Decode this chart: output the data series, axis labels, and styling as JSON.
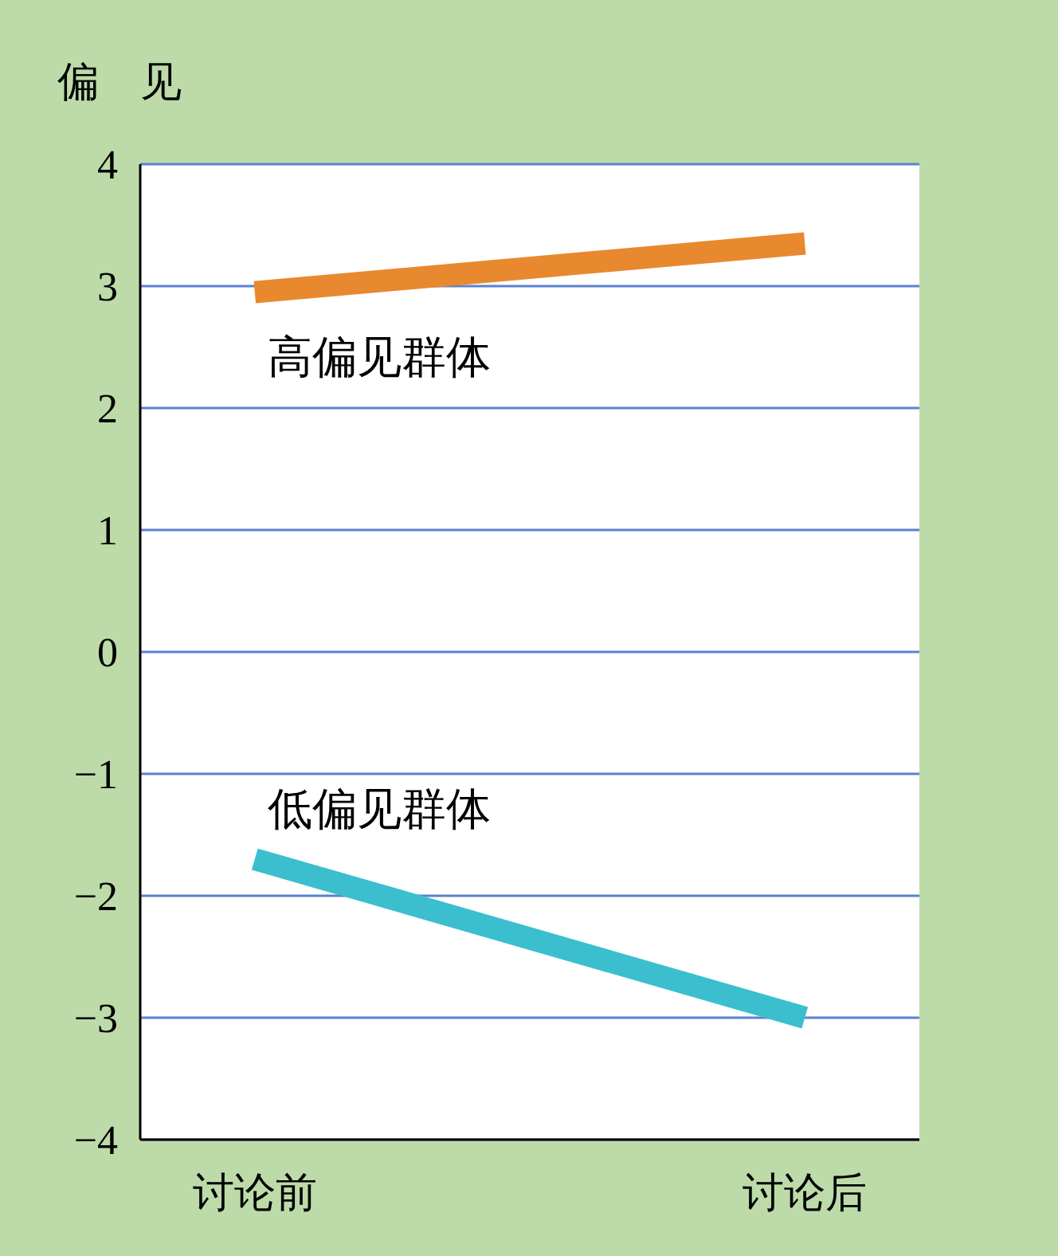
{
  "chart_data": {
    "type": "line",
    "ylabel": "偏　见",
    "categories": [
      "讨论前",
      "讨论后"
    ],
    "series": [
      {
        "name": "高偏见群体",
        "color": "#e8892f",
        "values": [
          2.95,
          3.35
        ]
      },
      {
        "name": "低偏见群体",
        "color": "#3bbfcf",
        "values": [
          -1.7,
          -3.0
        ]
      }
    ],
    "ylim": [
      -4,
      4
    ],
    "yticks": [
      {
        "value": -4,
        "label": "−4"
      },
      {
        "value": -3,
        "label": "−3"
      },
      {
        "value": -2,
        "label": "−2"
      },
      {
        "value": -1,
        "label": "−1"
      },
      0,
      1,
      2,
      3,
      4
    ],
    "grid": "y",
    "marker": "none",
    "line_style": "solid"
  }
}
